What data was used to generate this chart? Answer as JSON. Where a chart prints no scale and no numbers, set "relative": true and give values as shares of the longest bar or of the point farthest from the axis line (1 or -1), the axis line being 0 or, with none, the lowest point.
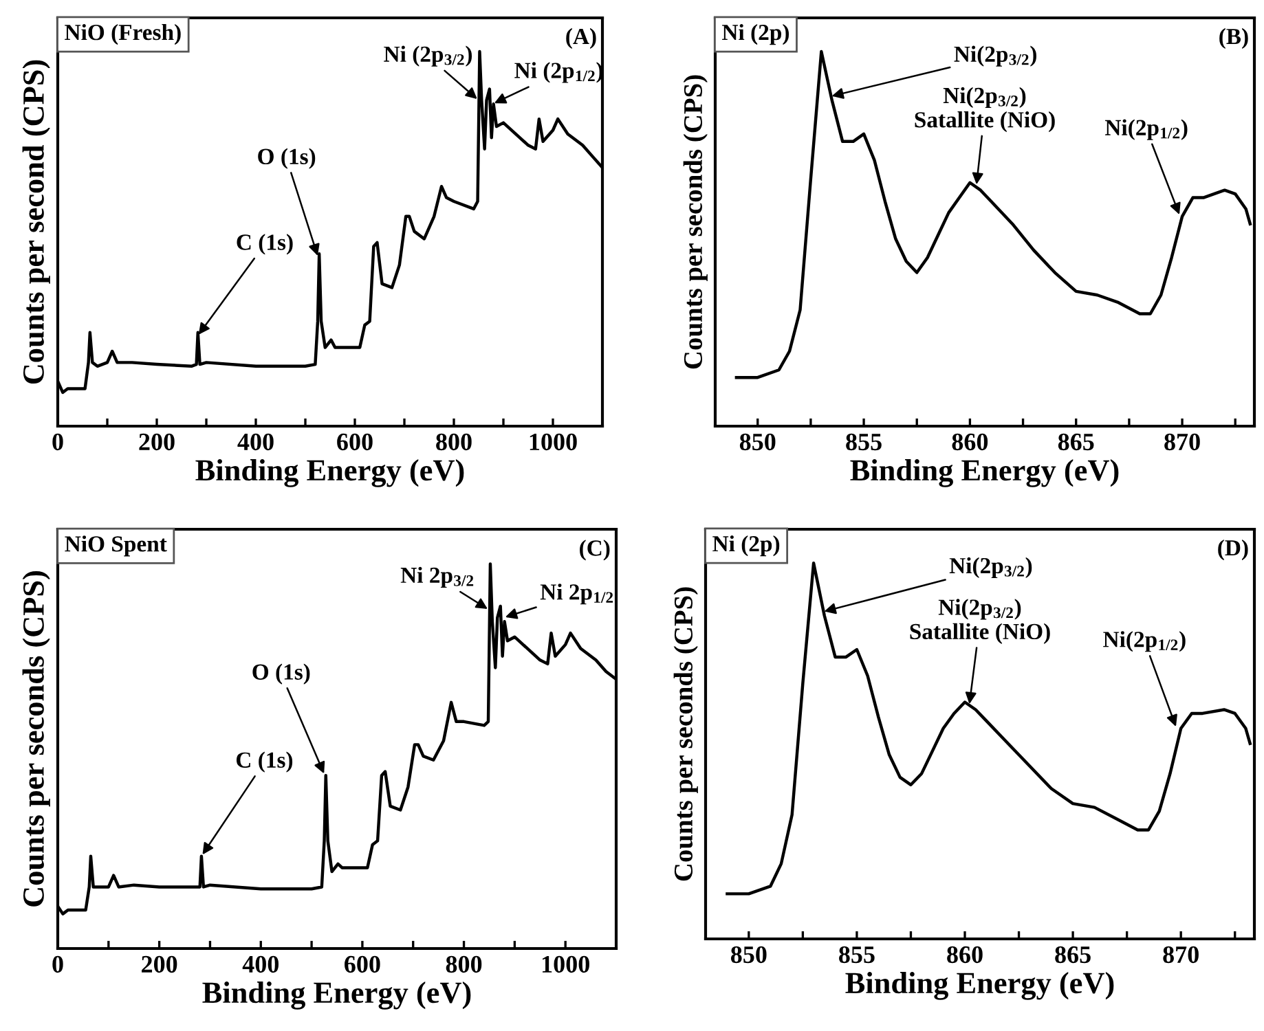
{
  "chart_data": [
    {
      "type": "line",
      "title": "NiO (Fresh)",
      "xlabel": "Binding Energy (eV)",
      "ylabel": "Counts per second (CPS)",
      "relative": true,
      "xlim": [
        0,
        1100
      ],
      "xticks": [
        0,
        {
          "value": 100,
          "label": null
        },
        200,
        {
          "value": 300,
          "label": null
        },
        400,
        {
          "value": 500,
          "label": null
        },
        600,
        {
          "value": 700,
          "label": null
        },
        800,
        {
          "value": 900,
          "label": null
        },
        1000
      ],
      "tick_labels": "x",
      "grid": false,
      "legend": false,
      "series": [
        {
          "color": "#000000",
          "x": [
            0,
            10,
            20,
            55,
            62,
            65,
            70,
            80,
            100,
            110,
            120,
            150,
            200,
            270,
            280,
            283,
            287,
            300,
            400,
            500,
            520,
            525,
            528,
            532,
            540,
            552,
            560,
            610,
            620,
            630,
            638,
            645,
            655,
            675,
            690,
            703,
            710,
            720,
            740,
            760,
            775,
            785,
            800,
            840,
            848,
            852,
            856,
            862,
            866,
            872,
            876,
            880,
            886,
            900,
            950,
            965,
            972,
            980,
            1000,
            1010,
            1030,
            1060,
            1080,
            1100
          ],
          "values": [
            0.12,
            0.09,
            0.1,
            0.1,
            0.17,
            0.25,
            0.17,
            0.16,
            0.17,
            0.2,
            0.17,
            0.17,
            0.165,
            0.16,
            0.165,
            0.25,
            0.165,
            0.17,
            0.16,
            0.16,
            0.165,
            0.28,
            0.46,
            0.28,
            0.21,
            0.23,
            0.21,
            0.21,
            0.27,
            0.28,
            0.48,
            0.49,
            0.38,
            0.37,
            0.43,
            0.56,
            0.56,
            0.52,
            0.5,
            0.56,
            0.64,
            0.61,
            0.6,
            0.58,
            0.6,
            1.0,
            0.87,
            0.74,
            0.87,
            0.9,
            0.77,
            0.86,
            0.8,
            0.81,
            0.75,
            0.74,
            0.82,
            0.76,
            0.79,
            0.82,
            0.78,
            0.75,
            0.72,
            0.69
          ]
        }
      ],
      "annotations": [
        "(A)",
        {
          "text": "C (1s)",
          "x": 282,
          "y": 0.24
        },
        {
          "text": "O (1s)",
          "x": 526,
          "y": 0.45
        },
        {
          "text": "Ni (2p$_{3/2}$)",
          "x": 850,
          "y": 0.87
        },
        {
          "text": "Ni (2p$_{1/2}$)",
          "x": 878,
          "y": 0.86
        }
      ]
    },
    {
      "type": "line",
      "title": "Ni (2p)",
      "xlabel": "Binding Energy (eV)",
      "ylabel": "Counts per seconds (CPS)",
      "relative": true,
      "xlim": [
        848,
        873.4
      ],
      "xticks": [
        850,
        {
          "value": 852.5,
          "label": null
        },
        855,
        {
          "value": 857.5,
          "label": null
        },
        860,
        {
          "value": 862.5,
          "label": null
        },
        865,
        {
          "value": 867.5,
          "label": null
        },
        870,
        {
          "value": 872.5,
          "label": null
        }
      ],
      "tick_labels": "x",
      "grid": false,
      "legend": false,
      "series": [
        {
          "color": "#000000",
          "x": [
            849,
            850,
            851,
            851.5,
            852,
            852.5,
            853,
            853.5,
            854,
            854.5,
            855,
            855.5,
            856,
            856.5,
            857,
            857.5,
            858,
            858.5,
            859,
            859.5,
            860,
            860.5,
            861,
            862,
            863,
            864,
            865,
            866,
            867,
            868,
            868.5,
            869,
            869.5,
            870,
            870.5,
            871,
            872,
            872.5,
            873,
            873.2
          ],
          "values": [
            0.13,
            0.13,
            0.15,
            0.2,
            0.31,
            0.66,
            1.0,
            0.87,
            0.76,
            0.76,
            0.78,
            0.71,
            0.6,
            0.5,
            0.44,
            0.41,
            0.45,
            0.51,
            0.57,
            0.61,
            0.65,
            0.63,
            0.6,
            0.54,
            0.47,
            0.41,
            0.36,
            0.35,
            0.33,
            0.3,
            0.3,
            0.35,
            0.45,
            0.56,
            0.61,
            0.61,
            0.63,
            0.62,
            0.58,
            0.54
          ]
        }
      ],
      "annotations": [
        "(B)",
        {
          "text": "Ni(2p$_{3/2}$)",
          "x": 853.4,
          "y": 0.88
        },
        {
          "text": "Ni(2p$_{3/2}$)\nSatallite (NiO)",
          "x": 860.3,
          "y": 0.64
        },
        {
          "text": "Ni(2p$_{1/2}$)",
          "x": 869.9,
          "y": 0.56
        }
      ]
    },
    {
      "type": "line",
      "title": "NiO Spent",
      "xlabel": "Binding Energy (eV)",
      "ylabel": "Counts per seconds (CPS)",
      "relative": true,
      "xlim": [
        0,
        1100
      ],
      "xticks": [
        0,
        {
          "value": 100,
          "label": null
        },
        200,
        {
          "value": 300,
          "label": null
        },
        400,
        {
          "value": 500,
          "label": null
        },
        600,
        {
          "value": 700,
          "label": null
        },
        800,
        {
          "value": 900,
          "label": null
        },
        1000
      ],
      "tick_labels": "x",
      "grid": false,
      "legend": false,
      "series": [
        {
          "color": "#000000",
          "x": [
            0,
            10,
            20,
            55,
            62,
            65,
            70,
            80,
            100,
            110,
            120,
            150,
            200,
            270,
            280,
            283,
            287,
            300,
            400,
            500,
            520,
            525,
            528,
            532,
            540,
            552,
            560,
            610,
            620,
            630,
            638,
            645,
            655,
            675,
            690,
            703,
            710,
            720,
            740,
            760,
            775,
            785,
            800,
            840,
            848,
            852,
            856,
            862,
            866,
            872,
            876,
            880,
            886,
            900,
            950,
            965,
            972,
            980,
            1000,
            1010,
            1030,
            1060,
            1080,
            1100
          ],
          "values": [
            0.11,
            0.09,
            0.1,
            0.1,
            0.16,
            0.24,
            0.16,
            0.16,
            0.16,
            0.19,
            0.16,
            0.165,
            0.16,
            0.16,
            0.16,
            0.24,
            0.16,
            0.165,
            0.155,
            0.155,
            0.16,
            0.28,
            0.45,
            0.28,
            0.2,
            0.22,
            0.21,
            0.21,
            0.27,
            0.28,
            0.45,
            0.46,
            0.37,
            0.36,
            0.42,
            0.53,
            0.53,
            0.5,
            0.49,
            0.54,
            0.64,
            0.59,
            0.59,
            0.58,
            0.59,
            1.0,
            0.85,
            0.73,
            0.86,
            0.89,
            0.76,
            0.85,
            0.8,
            0.81,
            0.75,
            0.74,
            0.82,
            0.76,
            0.79,
            0.82,
            0.78,
            0.75,
            0.72,
            0.7
          ]
        }
      ],
      "annotations": [
        "(C)",
        {
          "text": "C (1s)",
          "x": 283,
          "y": 0.24
        },
        {
          "text": "O (1s)",
          "x": 526,
          "y": 0.45
        },
        {
          "text": "Ni 2p$_{3/2}$",
          "x": 850,
          "y": 0.88
        },
        {
          "text": "Ni 2p$_{1/2}$",
          "x": 878,
          "y": 0.86
        }
      ]
    },
    {
      "type": "line",
      "title": "Ni (2p)",
      "xlabel": "Binding Energy (eV)",
      "ylabel": "Counts per seconds (CPS)",
      "relative": true,
      "xlim": [
        848,
        873.4
      ],
      "xticks": [
        850,
        {
          "value": 852.5,
          "label": null
        },
        855,
        {
          "value": 857.5,
          "label": null
        },
        860,
        {
          "value": 862.5,
          "label": null
        },
        865,
        {
          "value": 867.5,
          "label": null
        },
        870,
        {
          "value": 872.5,
          "label": null
        }
      ],
      "tick_labels": "x",
      "grid": false,
      "legend": false,
      "series": [
        {
          "color": "#000000",
          "x": [
            849,
            850,
            851,
            851.5,
            852,
            852.5,
            853,
            853.5,
            854,
            854.5,
            855,
            855.5,
            856,
            856.5,
            857,
            857.5,
            858,
            858.5,
            859,
            859.5,
            860,
            860.5,
            861,
            862,
            863,
            864,
            865,
            866,
            867,
            868,
            868.5,
            869,
            869.5,
            870,
            870.5,
            871,
            872,
            872.5,
            873,
            873.2
          ],
          "values": [
            0.12,
            0.12,
            0.14,
            0.2,
            0.33,
            0.68,
            1.0,
            0.86,
            0.75,
            0.75,
            0.77,
            0.7,
            0.59,
            0.49,
            0.43,
            0.41,
            0.44,
            0.5,
            0.56,
            0.6,
            0.63,
            0.61,
            0.58,
            0.52,
            0.46,
            0.4,
            0.36,
            0.35,
            0.32,
            0.29,
            0.29,
            0.34,
            0.44,
            0.56,
            0.6,
            0.6,
            0.61,
            0.6,
            0.56,
            0.52
          ]
        }
      ],
      "annotations": [
        "(D)",
        {
          "text": "Ni(2p$_{3/2}$)",
          "x": 853.4,
          "y": 0.87
        },
        {
          "text": "Ni(2p$_{3/2}$)\nSatallite (NiO)",
          "x": 860.2,
          "y": 0.62
        },
        {
          "text": "Ni(2p$_{1/2}$)",
          "x": 869.8,
          "y": 0.56
        }
      ]
    }
  ]
}
